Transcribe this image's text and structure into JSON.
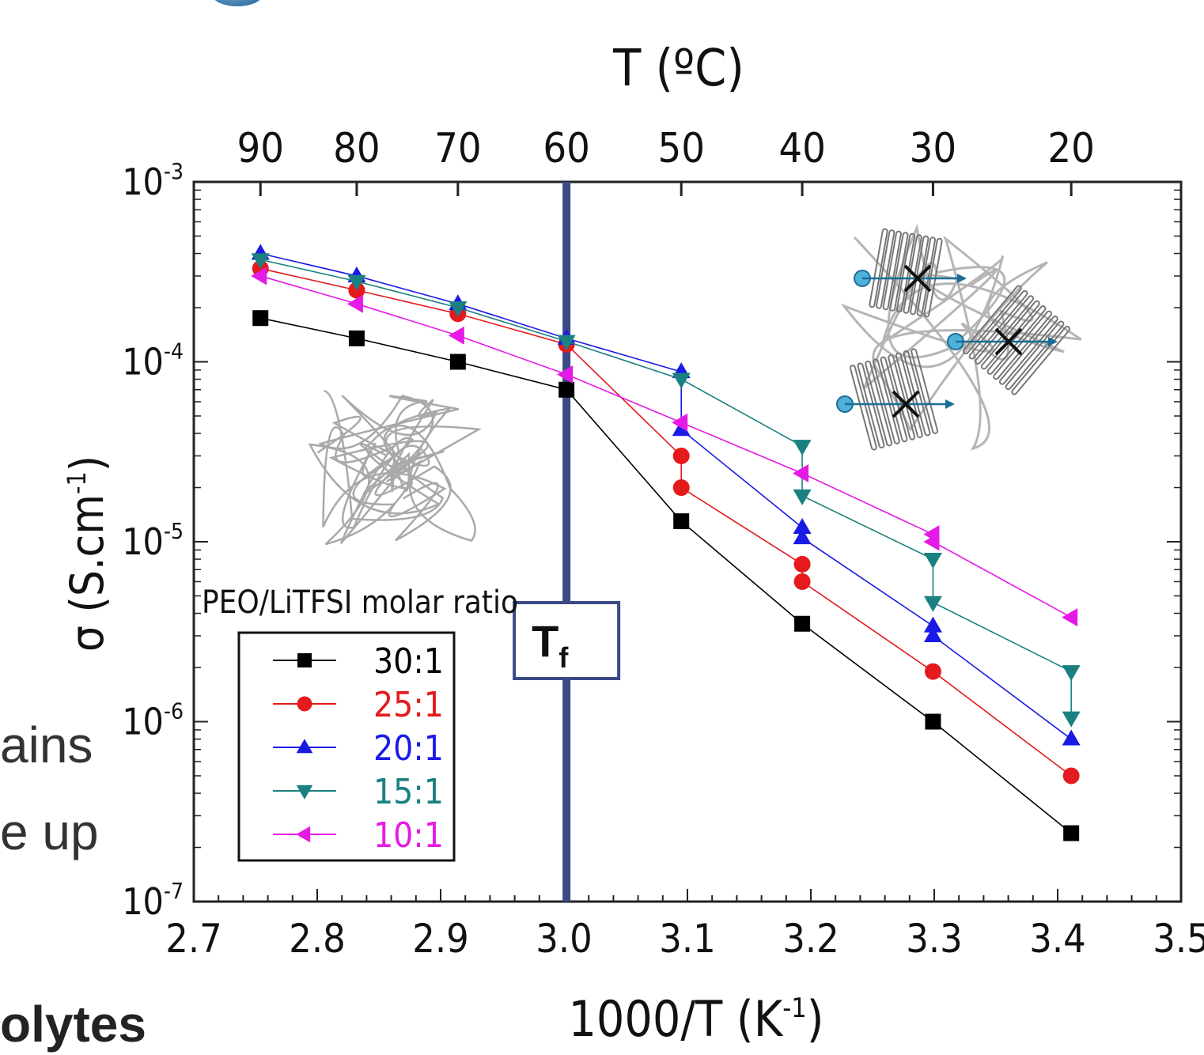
{
  "slide_fragments": [
    "ains",
    "e up",
    "olytes"
  ],
  "chart_data": {
    "type": "line",
    "title": "",
    "xlabel": "1000/T (K",
    "xlabel_sup": "-1",
    "xlabel_end": ")",
    "ylabel": "σ (S.cm",
    "ylabel_sup": "-1",
    "ylabel_end": ")",
    "top_axis_label": "T (ºC)",
    "x_range": [
      2.7,
      3.5
    ],
    "x_ticks": [
      "2.7",
      "2.8",
      "2.9",
      "3.0",
      "3.1",
      "3.2",
      "3.3",
      "3.4",
      "3.5"
    ],
    "y_scale": "log",
    "y_range": [
      1e-07,
      0.001
    ],
    "y_ticks": [
      {
        "value": 0.001,
        "base": "10",
        "exp": "-3"
      },
      {
        "value": 0.0001,
        "base": "10",
        "exp": "-4"
      },
      {
        "value": 1e-05,
        "base": "10",
        "exp": "-5"
      },
      {
        "value": 1e-06,
        "base": "10",
        "exp": "-6"
      },
      {
        "value": 1e-07,
        "base": "10",
        "exp": "-7"
      }
    ],
    "top_ticks": [
      {
        "label": "90",
        "x": 2.754
      },
      {
        "label": "80",
        "x": 2.832
      },
      {
        "label": "70",
        "x": 2.914
      },
      {
        "label": "60",
        "x": 3.002
      },
      {
        "label": "50",
        "x": 3.095
      },
      {
        "label": "40",
        "x": 3.193
      },
      {
        "label": "30",
        "x": 3.299
      },
      {
        "label": "20",
        "x": 3.411
      }
    ],
    "vertical_marker": {
      "x": 3.002,
      "label": "T",
      "label_sub": "f",
      "color": "#3b4a85"
    },
    "legend_title": "PEO/LiTFSI molar ratio",
    "legend_position": "lower-left",
    "grid": false,
    "series": [
      {
        "name": "30:1",
        "color": "#000000",
        "marker": "square",
        "x": [
          2.754,
          2.832,
          2.914,
          3.002,
          3.095,
          3.193,
          3.299,
          3.411
        ],
        "y": [
          0.000175,
          0.000135,
          0.0001,
          7e-05,
          1.3e-05,
          3.5e-06,
          1e-06,
          2.4e-07
        ]
      },
      {
        "name": "25:1",
        "color": "#e41a1c",
        "marker": "circle",
        "x": [
          2.754,
          2.832,
          2.914,
          3.002,
          3.095,
          3.095,
          3.193,
          3.193,
          3.299,
          3.411
        ],
        "y": [
          0.00033,
          0.00025,
          0.000185,
          0.000125,
          3e-05,
          2e-05,
          7.5e-06,
          6e-06,
          1.9e-06,
          5e-07
        ]
      },
      {
        "name": "20:1",
        "color": "#1a1ae6",
        "marker": "triangle-up",
        "x": [
          2.754,
          2.832,
          2.914,
          3.002,
          3.095,
          3.095,
          3.193,
          3.193,
          3.299,
          3.299,
          3.411
        ],
        "y": [
          0.0004,
          0.0003,
          0.00021,
          0.000135,
          8.8e-05,
          4.2e-05,
          1.2e-05,
          1.05e-05,
          3.4e-06,
          3e-06,
          8e-07
        ]
      },
      {
        "name": "15:1",
        "color": "#1a8080",
        "marker": "triangle-down",
        "x": [
          2.754,
          2.832,
          2.914,
          3.002,
          3.095,
          3.193,
          3.193,
          3.299,
          3.299,
          3.411,
          3.411
        ],
        "y": [
          0.00037,
          0.00028,
          0.0002,
          0.00013,
          8e-05,
          3.4e-05,
          1.8e-05,
          8e-06,
          4.6e-06,
          1.9e-06,
          1.05e-06
        ]
      },
      {
        "name": "10:1",
        "color": "#e61ae6",
        "marker": "triangle-left",
        "x": [
          2.754,
          2.832,
          2.914,
          3.002,
          3.095,
          3.193,
          3.299,
          3.299,
          3.411
        ],
        "y": [
          0.0003,
          0.00021,
          0.00014,
          8.5e-05,
          4.6e-05,
          2.4e-05,
          1.1e-05,
          1e-05,
          3.8e-06
        ]
      }
    ]
  }
}
